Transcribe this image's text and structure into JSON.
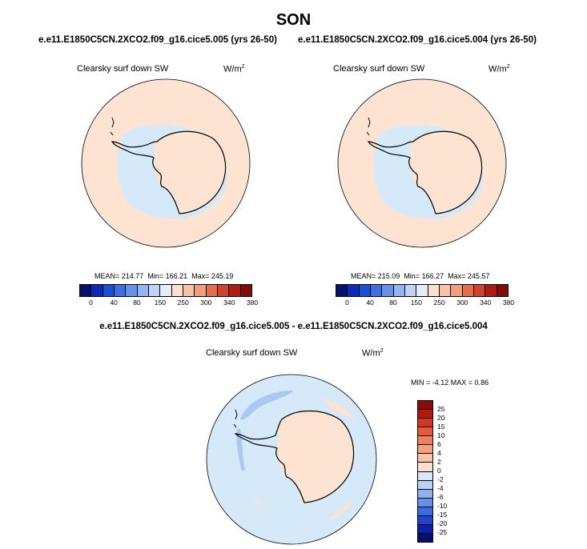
{
  "page_title": "SON",
  "colors": {
    "ocean_abs": "#fde3d2",
    "ice_abs": "#d6e9f8",
    "diff_bg": "#d6e9f8",
    "diff_pos": "#fde3d2",
    "diff_neg": "#a9c9f2",
    "coast": "#000000"
  },
  "panels": [
    {
      "case_title": "e.e11.E1850C5CN.2XCO2.f09_g16.cice5.005 (yrs 26-50)",
      "label": "Clearsky surf down SW",
      "units": "W/m",
      "units_sup": "2",
      "mean_text": "MEAN= 214.77",
      "min_text": "Min= 166.21",
      "max_text": "Max= 245.19"
    },
    {
      "case_title": "e.e11.E1850C5CN.2XCO2.f09_g16.cice5.004 (yrs 26-50)",
      "label": "Clearsky surf down SW",
      "units": "W/m",
      "units_sup": "2",
      "mean_text": "MEAN= 215.09",
      "min_text": "Min= 166.27",
      "max_text": "Max= 245.57"
    }
  ],
  "abs_colorbar": {
    "colors": [
      "#08106e",
      "#0c2cb8",
      "#1f4fd6",
      "#3e70e4",
      "#6593ec",
      "#93b6f2",
      "#bdd4f7",
      "#e2eefb",
      "#fbe0d0",
      "#f8c2a7",
      "#f29e7c",
      "#e66e50",
      "#d2412c",
      "#b01a12",
      "#800b08"
    ],
    "labels": [
      "0",
      "40",
      "80",
      "150",
      "250",
      "300",
      "340",
      "380"
    ]
  },
  "diff": {
    "title": "e.e11.E1850C5CN.2XCO2.f09_g16.cice5.005 - e.e11.E1850C5CN.2XCO2.f09_g16.cice5.004",
    "label": "Clearsky surf down SW",
    "units": "W/m",
    "units_sup": "2",
    "min_text": "MIN =  -4.12",
    "max_text": "MAX =   0.86",
    "colorbar": {
      "colors": [
        "#8a0b07",
        "#b3170f",
        "#d53222",
        "#e8593a",
        "#f27f5b",
        "#f7a27f",
        "#fbc4a9",
        "#fde1cf",
        "#d9e8f8",
        "#b9d2f4",
        "#8fb2ee",
        "#6390e8",
        "#3a6be0",
        "#1e45cf",
        "#0b22a8",
        "#060e70"
      ],
      "labels": [
        "25",
        "20",
        "15",
        "10",
        "6",
        "4",
        "2",
        "0",
        "-2",
        "-4",
        "-6",
        "-10",
        "-15",
        "-20",
        "-25"
      ]
    }
  }
}
